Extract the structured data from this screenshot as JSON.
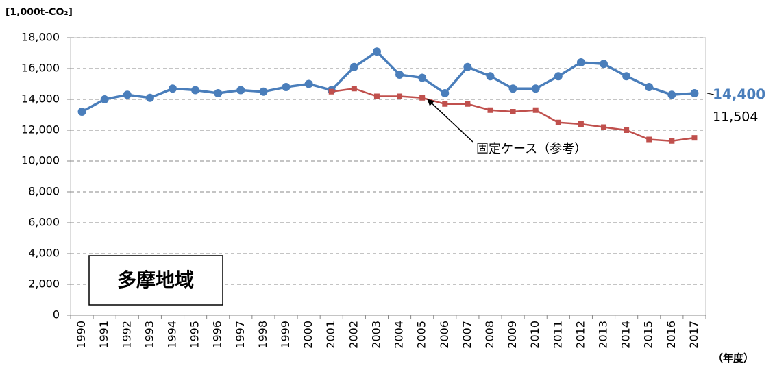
{
  "chart_data": {
    "type": "line",
    "y_label": "[1,000t-CO₂]",
    "x_label": "（年度）",
    "region_label": "多摩地域",
    "annotation": "固定ケース（参考）",
    "categories": [
      "1990",
      "1991",
      "1992",
      "1993",
      "1994",
      "1995",
      "1996",
      "1997",
      "1998",
      "1999",
      "2000",
      "2001",
      "2002",
      "2003",
      "2004",
      "2005",
      "2006",
      "2007",
      "2008",
      "2009",
      "2010",
      "2011",
      "2012",
      "2013",
      "2014",
      "2015",
      "2016",
      "2017"
    ],
    "series": [
      {
        "color": "#4a7ebb",
        "marker": "circle",
        "values": [
          13200,
          14000,
          14300,
          14100,
          14700,
          14600,
          14400,
          14600,
          14500,
          14800,
          15000,
          14600,
          16100,
          17100,
          15600,
          15400,
          14400,
          16100,
          15500,
          14700,
          14700,
          15500,
          16400,
          16300,
          15500,
          14800,
          14300,
          14400
        ],
        "value_labels": [
          null,
          null,
          null,
          null,
          null,
          null,
          null,
          null,
          null,
          null,
          null,
          null,
          null,
          null,
          null,
          null,
          null,
          null,
          null,
          null,
          null,
          null,
          null,
          null,
          null,
          null,
          null,
          "14,400"
        ]
      },
      {
        "color": "#c0504d",
        "marker": "square",
        "values": [
          null,
          null,
          null,
          null,
          null,
          null,
          null,
          null,
          null,
          null,
          null,
          14500,
          14700,
          14200,
          14200,
          14100,
          13700,
          13700,
          13300,
          13200,
          13300,
          12500,
          12400,
          12200,
          12000,
          11400,
          11300,
          11504
        ],
        "value_labels": [
          null,
          null,
          null,
          null,
          null,
          null,
          null,
          null,
          null,
          null,
          null,
          null,
          null,
          null,
          null,
          null,
          null,
          null,
          null,
          null,
          null,
          null,
          null,
          null,
          null,
          null,
          null,
          "11,504"
        ]
      }
    ],
    "ylim": [
      0,
      18000
    ],
    "yticks": [
      0,
      {
        "value": 2000,
        "label": "2,000"
      },
      {
        "value": 4000,
        "label": "4,000"
      },
      {
        "value": 6000,
        "label": "6,000"
      },
      {
        "value": 8000,
        "label": "8,000"
      },
      {
        "value": 10000,
        "label": "10,000"
      },
      {
        "value": 12000,
        "label": "12,000"
      },
      {
        "value": 14000,
        "label": "14,000"
      },
      {
        "value": 16000,
        "label": "16,000"
      },
      {
        "value": 18000,
        "label": "18,000"
      }
    ],
    "grid": true
  }
}
